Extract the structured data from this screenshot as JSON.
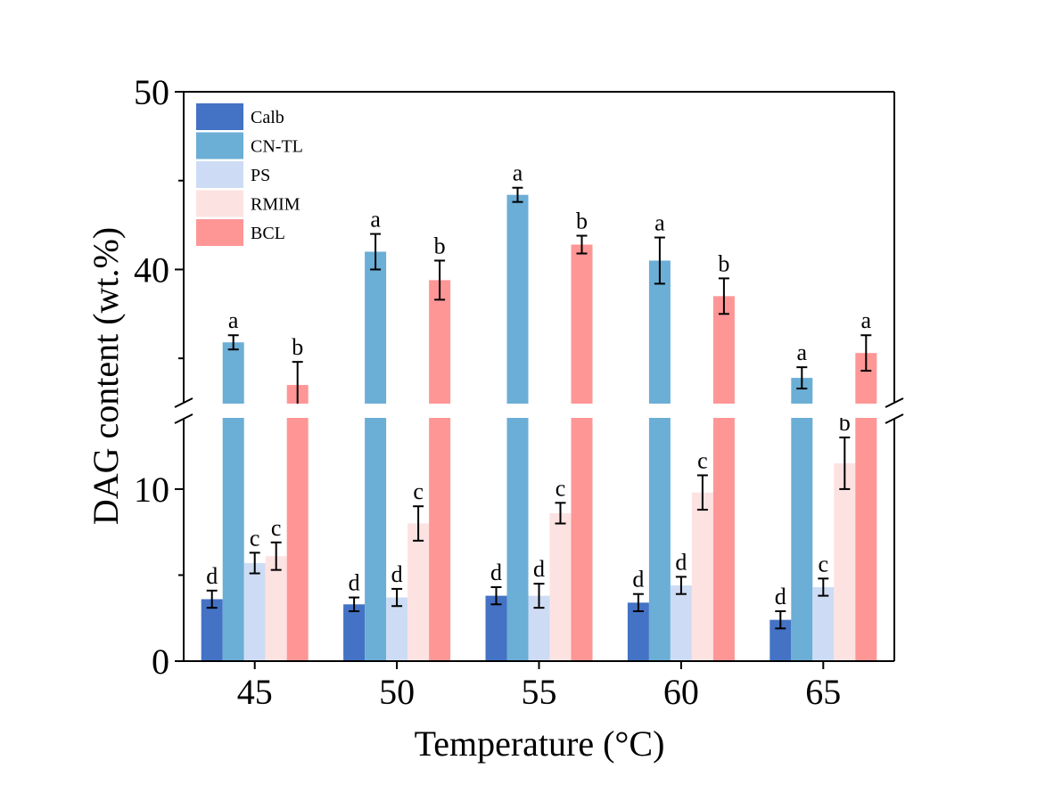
{
  "chart_data": {
    "type": "bar",
    "title": "",
    "xlabel": "Temperature (°C)",
    "ylabel": "DAG content (wt.%)",
    "categories": [
      "45",
      "50",
      "55",
      "60",
      "65"
    ],
    "y_axis": "broken",
    "y_segments": [
      {
        "range": [
          0,
          14.5
        ],
        "ticks": [
          0,
          10
        ]
      },
      {
        "range": [
          32,
          50
        ],
        "ticks": [
          40,
          50
        ]
      }
    ],
    "legend_position": "top-left",
    "grid": false,
    "series": [
      {
        "name": "Calb",
        "color": "#4472C4",
        "values": [
          3.6,
          3.3,
          3.8,
          3.4,
          2.4
        ],
        "errors": [
          0.5,
          0.4,
          0.5,
          0.5,
          0.5
        ],
        "letters": [
          "d",
          "d",
          "d",
          "d",
          "d"
        ]
      },
      {
        "name": "CN-TL",
        "color": "#6BAED6",
        "values": [
          35.9,
          41.0,
          44.2,
          40.5,
          33.9
        ],
        "errors": [
          0.4,
          1.0,
          0.4,
          1.3,
          0.6
        ],
        "letters": [
          "a",
          "a",
          "a",
          "a",
          "a"
        ]
      },
      {
        "name": "PS",
        "color": "#CDDCF4",
        "values": [
          5.7,
          3.7,
          3.8,
          4.4,
          4.3
        ],
        "errors": [
          0.6,
          0.5,
          0.7,
          0.5,
          0.5
        ],
        "letters": [
          "c",
          "d",
          "d",
          "d",
          "c"
        ]
      },
      {
        "name": "RMIM",
        "color": "#FDE2E2",
        "values": [
          6.1,
          8.0,
          8.6,
          9.8,
          11.5
        ],
        "errors": [
          0.8,
          1.0,
          0.6,
          1.0,
          1.5
        ],
        "letters": [
          "c",
          "c",
          "c",
          "c",
          "b"
        ]
      },
      {
        "name": "BCL",
        "color": "#FF9696",
        "values": [
          33.5,
          39.4,
          41.4,
          38.5,
          35.3
        ],
        "errors": [
          1.3,
          1.1,
          0.5,
          1.0,
          1.0
        ],
        "letters": [
          "b",
          "b",
          "b",
          "b",
          "a"
        ]
      }
    ]
  }
}
